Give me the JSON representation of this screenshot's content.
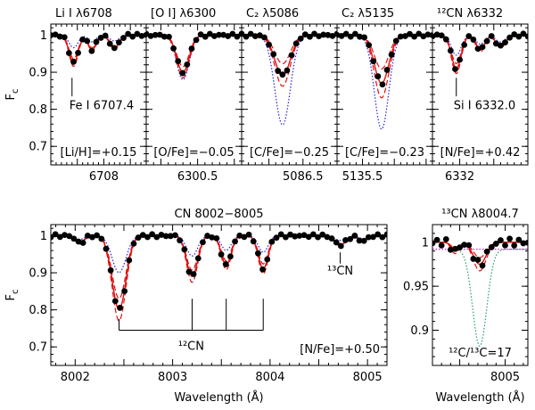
{
  "chart_data": [
    {
      "type": "line",
      "title": "Li I λ6708",
      "ylabel": "F",
      "ylabel_sub": "c",
      "xlim": [
        6707.0,
        6708.8
      ],
      "ylim": [
        0.65,
        1.03
      ],
      "yticks": [
        0.7,
        0.8,
        0.9,
        1
      ],
      "xtick_labels": [
        {
          "x": 6708,
          "label": "6708"
        }
      ],
      "annotation": "[Li/H]=+0.15",
      "line_marker": {
        "x": 6707.4,
        "label": "Fe I 6707.4"
      },
      "lines": [
        {
          "c": 6707.43,
          "w": 0.12,
          "d": 0.075
        },
        {
          "c": 6707.78,
          "w": 0.1,
          "d": 0.04
        },
        {
          "c": 6708.2,
          "w": 0.12,
          "d": 0.035
        }
      ],
      "model_depth_scales": [
        0.85,
        1.0,
        1.12
      ],
      "blue_depth_scale": 0.45,
      "series": [
        {
          "name": "observed",
          "style": "points",
          "color": "#000000"
        },
        {
          "name": "synthetic fits",
          "style": "solid/dashed",
          "color": "#e01010"
        },
        {
          "name": "no-element synthesis",
          "style": "dotted",
          "color": "#2020e0"
        }
      ]
    },
    {
      "type": "line",
      "title": "[O I] λ6300",
      "xlim": [
        6299.8,
        6301.1
      ],
      "ylim": [
        0.65,
        1.03
      ],
      "yticks": [
        0.7,
        0.8,
        0.9,
        1
      ],
      "xtick_labels": [
        {
          "x": 6300.5,
          "label": "6300.5"
        }
      ],
      "annotation": "[O/Fe]=−0.05",
      "lines": [
        {
          "c": 6300.3,
          "w": 0.12,
          "d": 0.1
        }
      ],
      "model_depth_scales": [
        0.85,
        1.0,
        1.15
      ],
      "blue_depth_scale": 1.2,
      "series": [
        {
          "name": "observed",
          "style": "points",
          "color": "#000000"
        },
        {
          "name": "synthetic fits",
          "style": "solid/dashed",
          "color": "#e01010"
        },
        {
          "name": "no-element synthesis",
          "style": "dotted",
          "color": "#2020e0"
        }
      ]
    },
    {
      "type": "line",
      "title": "C₂ λ5086",
      "xlim": [
        5085.6,
        5087.0
      ],
      "ylim": [
        0.65,
        1.03
      ],
      "yticks": [
        0.7,
        0.8,
        0.9,
        1
      ],
      "xtick_labels": [
        {
          "x": 5086.5,
          "label": "5086.5"
        }
      ],
      "annotation": "[C/Fe]=−0.25",
      "lines": [
        {
          "c": 5086.2,
          "w": 0.16,
          "d": 0.11
        }
      ],
      "model_depth_scales": [
        0.7,
        1.0,
        1.25
      ],
      "blue_depth_scale": 2.2,
      "series": [
        {
          "name": "observed",
          "style": "points",
          "color": "#000000"
        },
        {
          "name": "synthetic fits",
          "style": "solid/dashed",
          "color": "#e01010"
        },
        {
          "name": "no-element synthesis",
          "style": "dotted",
          "color": "#2020e0"
        }
      ]
    },
    {
      "type": "line",
      "title": "C₂ λ5135",
      "xlim": [
        5135.1,
        5136.6
      ],
      "ylim": [
        0.65,
        1.03
      ],
      "yticks": [
        0.7,
        0.8,
        0.9,
        1
      ],
      "xtick_labels": [
        {
          "x": 5135.5,
          "label": "5135.5"
        }
      ],
      "annotation": "[C/Fe]=−0.23",
      "lines": [
        {
          "c": 5135.8,
          "w": 0.16,
          "d": 0.13
        }
      ],
      "model_depth_scales": [
        0.7,
        1.0,
        1.3
      ],
      "blue_depth_scale": 1.95,
      "series": [
        {
          "name": "observed",
          "style": "points",
          "color": "#000000"
        },
        {
          "name": "synthetic fits",
          "style": "solid/dashed",
          "color": "#e01010"
        },
        {
          "name": "no-element synthesis",
          "style": "dotted",
          "color": "#2020e0"
        }
      ]
    },
    {
      "type": "line",
      "title": "¹²CN λ6332",
      "xlim": [
        6331.6,
        6333.0
      ],
      "ylim": [
        0.65,
        1.03
      ],
      "yticks": [
        0.7,
        0.8,
        0.9,
        1
      ],
      "xtick_labels": [
        {
          "x": 6332,
          "label": "6332"
        }
      ],
      "annotation": "[N/Fe]=+0.42",
      "line_marker": {
        "x": 6331.95,
        "label": "Si I 6332.0"
      },
      "lines": [
        {
          "c": 6331.95,
          "w": 0.1,
          "d": 0.09
        },
        {
          "c": 6332.3,
          "w": 0.09,
          "d": 0.04
        },
        {
          "c": 6332.6,
          "w": 0.1,
          "d": 0.03
        }
      ],
      "model_depth_scales": [
        0.85,
        1.0,
        1.15
      ],
      "blue_depth_scale": 0.6,
      "series": [
        {
          "name": "observed",
          "style": "points",
          "color": "#000000"
        },
        {
          "name": "synthetic fits",
          "style": "solid/dashed",
          "color": "#e01010"
        },
        {
          "name": "no-element synthesis",
          "style": "dotted",
          "color": "#2020e0"
        }
      ]
    },
    {
      "type": "line",
      "title": "CN 8002−8005",
      "xlabel": "Wavelength (Å)",
      "ylabel": "F",
      "ylabel_sub": "c",
      "xlim": [
        8001.75,
        8005.2
      ],
      "ylim": [
        0.65,
        1.03
      ],
      "yticks": [
        0.7,
        0.8,
        0.9,
        1
      ],
      "xtick_labels": [
        {
          "x": 8002,
          "label": "8002"
        },
        {
          "x": 8003,
          "label": "8003"
        },
        {
          "x": 8004,
          "label": "8004"
        },
        {
          "x": 8005,
          "label": "8005"
        }
      ],
      "annotation": "[N/Fe]=+0.50",
      "line_marker_13": {
        "x": 8004.72,
        "label": "¹³CN"
      },
      "cn12_bracket": {
        "x_positions": [
          8002.45,
          8003.2,
          8003.55,
          8003.93
        ],
        "label": "¹²CN"
      },
      "lines": [
        {
          "c": 8002.45,
          "w": 0.1,
          "d": 0.2
        },
        {
          "c": 8003.2,
          "w": 0.08,
          "d": 0.11
        },
        {
          "c": 8003.55,
          "w": 0.07,
          "d": 0.08
        },
        {
          "c": 8003.93,
          "w": 0.07,
          "d": 0.09
        },
        {
          "c": 8002.05,
          "w": 0.06,
          "d": 0.02
        },
        {
          "c": 8004.72,
          "w": 0.08,
          "d": 0.025
        },
        {
          "c": 8004.95,
          "w": 0.06,
          "d": 0.015
        }
      ],
      "model_depth_scales": [
        0.85,
        1.0,
        1.15
      ],
      "blue_depth_scale": 0.5,
      "series": [
        {
          "name": "observed",
          "style": "points",
          "color": "#000000"
        },
        {
          "name": "synthetic fits",
          "style": "solid/dashed",
          "color": "#e01010"
        },
        {
          "name": "no-element synthesis",
          "style": "dotted",
          "color": "#2020e0"
        }
      ]
    },
    {
      "type": "line",
      "title": "¹³CN λ8004.7",
      "xlabel": "Wavelength (Å)",
      "xlim": [
        8004.2,
        8005.25
      ],
      "ylim": [
        0.86,
        1.02
      ],
      "yticks": [
        0.9,
        0.95,
        1
      ],
      "xtick_labels": [
        {
          "x": 8005,
          "label": "8005"
        }
      ],
      "annotation": "¹²C/¹³C=17",
      "lines": [
        {
          "c": 8004.72,
          "w": 0.1,
          "d": 0.025
        },
        {
          "c": 8004.45,
          "w": 0.06,
          "d": 0.01
        }
      ],
      "model_depth_scales": [
        0.7,
        1.0,
        1.3
      ],
      "green_curve": {
        "center": 8004.72,
        "width": 0.11,
        "depth": 0.11
      },
      "magenta_level": 0.992,
      "series": [
        {
          "name": "observed",
          "style": "points",
          "color": "#000000"
        },
        {
          "name": "synthetic fits",
          "style": "solid/dashed",
          "color": "#e01010"
        },
        {
          "name": "no ¹³C",
          "style": "dotted",
          "color": "#e020e0"
        },
        {
          "name": "low ratio",
          "style": "dotted",
          "color": "#20a060"
        }
      ]
    }
  ]
}
